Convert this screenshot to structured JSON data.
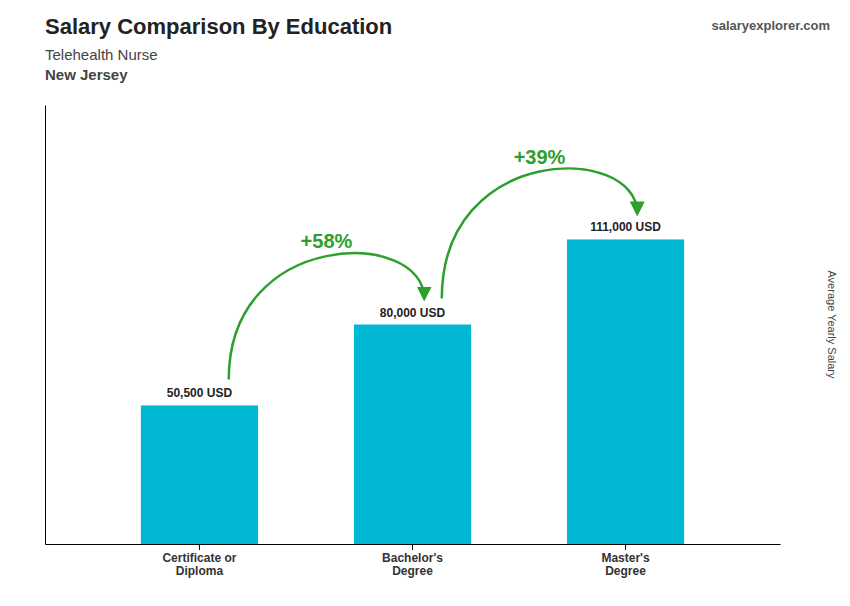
{
  "chart_data": {
    "type": "bar",
    "title": "Salary Comparison By Education",
    "subtitle": [
      "Telehealth Nurse",
      "New Jersey"
    ],
    "source": "salaryexplorer.com",
    "ylabel": "Average Yearly Salary",
    "categories": [
      "Certificate or\nDiploma",
      "Bachelor's\nDegree",
      "Master's\nDegree"
    ],
    "values": [
      50500,
      80000,
      111000
    ],
    "value_labels": [
      "50,500 USD",
      "80,000 USD",
      "111,000 USD"
    ],
    "data_labels": true,
    "annotations": [
      "+58%",
      "+39%"
    ],
    "color": "#00b8d4",
    "ylim": [
      0,
      160000
    ],
    "tick_labels": "x",
    "grid": false
  }
}
